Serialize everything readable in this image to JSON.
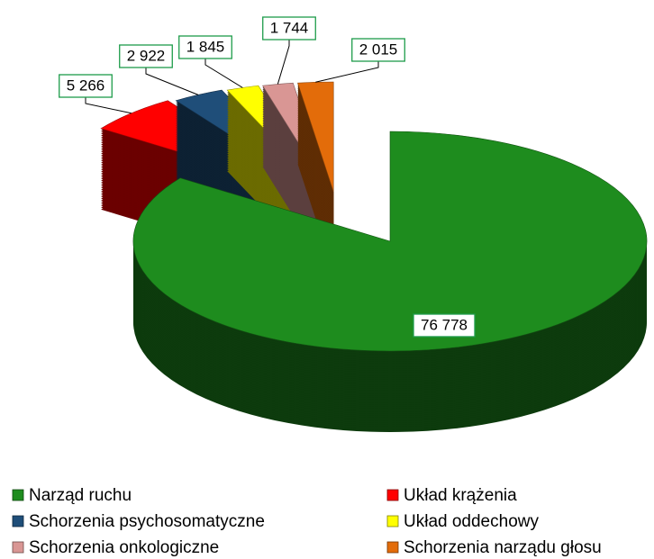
{
  "chart_data": {
    "type": "pie",
    "categories": [
      "Narząd ruchu",
      "Układ krążenia",
      "Schorzenia psychosomatyczne",
      "Układ oddechowy",
      "Schorzenia onkologiczne",
      "Schorzenia narządu głosu"
    ],
    "values": [
      76778,
      5266,
      2922,
      1845,
      1744,
      2015
    ],
    "value_labels": [
      "76 778",
      "5 266",
      "2 922",
      "1 845",
      "1 744",
      "2 015"
    ],
    "colors": [
      "#1e8c1e",
      "#ff0000",
      "#1f4e79",
      "#ffff00",
      "#d99694",
      "#e36c0a"
    ],
    "legend": "bottom"
  }
}
